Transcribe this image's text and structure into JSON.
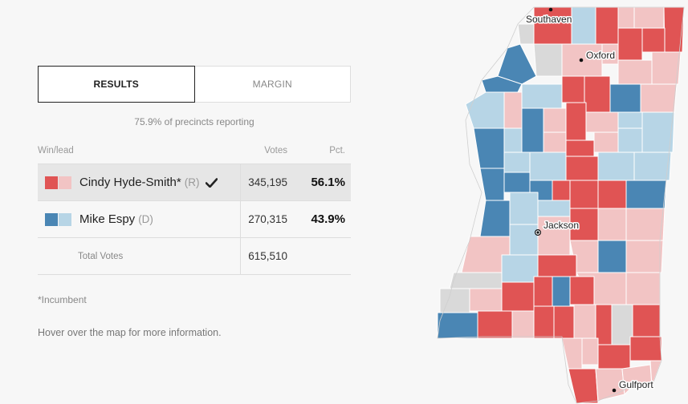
{
  "tabs": [
    {
      "label": "RESULTS"
    },
    {
      "label": "MARGIN"
    }
  ],
  "reporting": "75.9% of precincts reporting",
  "table": {
    "headers": {
      "winlead": "Win/lead",
      "votes": "Votes",
      "pct": "Pct."
    },
    "candidates": [
      {
        "name": "Cindy Hyde-Smith*",
        "party": "(R)",
        "votes": "345,195",
        "pct": "56.1%",
        "leader": true
      },
      {
        "name": "Mike Espy",
        "party": "(D)",
        "votes": "270,315",
        "pct": "43.9%",
        "leader": false
      }
    ],
    "total_label": "Total Votes",
    "total_votes": "615,510"
  },
  "incumbent_note": "*Incumbent",
  "hover_note": "Hover over the map for more information.",
  "colors": {
    "rep_strong": "#e05454",
    "rep_light": "#f2c4c4",
    "dem_strong": "#4a86b4",
    "dem_light": "#b7d5e6",
    "no_result": "#d9d9d9",
    "background": "#f7f7f7"
  },
  "icons": {
    "leader_check": "check-icon"
  },
  "map": {
    "cities": [
      {
        "name": "Southaven"
      },
      {
        "name": "Oxford"
      },
      {
        "name": "Jackson"
      },
      {
        "name": "Gulfport"
      }
    ]
  }
}
